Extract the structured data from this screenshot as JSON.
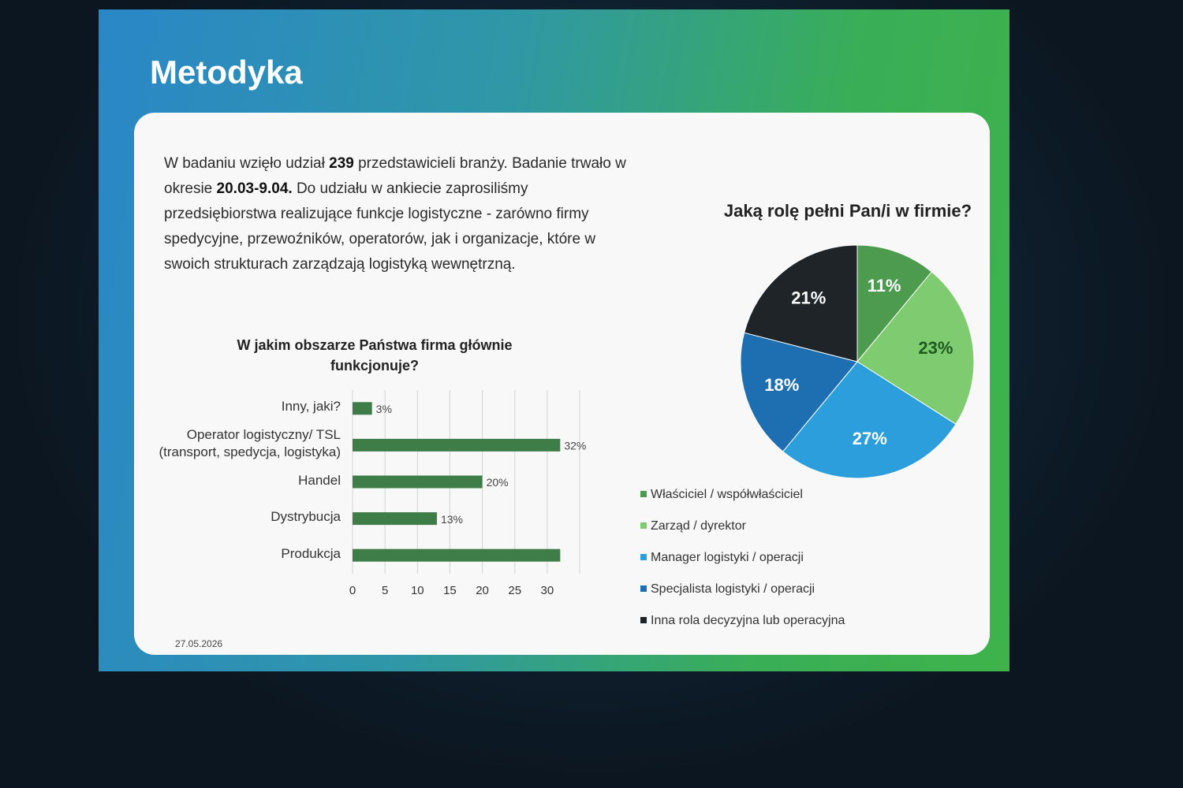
{
  "slide": {
    "title": "Metodyka",
    "paragraph": [
      "W badaniu wzięło udział ",
      "239",
      " przedstawicieli branży. Badanie trwało w okresie ",
      "20.03-9.04.",
      " Do udziału w ankiecie zaprosiliśmy przedsiębiorstwa realizujące funkcje logistyczne - zarówno firmy spedycyjne, przewoźników, operatorów, jak i organizacje, które w swoich strukturach zarządzają logistyką wewnętrzną."
    ],
    "date": "27.05.2026"
  },
  "chart_data": [
    {
      "type": "hbar",
      "title": "W jakim obszarze Państwa firma głównie funkcjonuje?",
      "categories": [
        "Inny, jaki?",
        "Operator logistyczny/ TSL (transport, spedycja, logistyka)",
        "Handel",
        "Dystrybucja",
        "Produkcja"
      ],
      "values": [
        3,
        32,
        20,
        13,
        32
      ],
      "value_labels": [
        "3%",
        "32%",
        "20%",
        "13%",
        null
      ],
      "color": "#3e7d47",
      "xlim": [
        0,
        35
      ],
      "xticks": [
        0,
        5,
        10,
        15,
        20,
        25,
        30
      ],
      "grid": true
    },
    {
      "type": "pie",
      "title": "Jaką rolę pełni Pan/i w firmie?",
      "categories": [
        "Właściciel / współwłaściciel",
        "Zarząd / dyrektor",
        "Manager logistyki / operacji",
        "Specjalista logistyki / operacji",
        "Inna rola decyzyjna lub operacyjna"
      ],
      "values": [
        11,
        23,
        27,
        18,
        21
      ],
      "value_labels": [
        "11%",
        "23%",
        "27%",
        "18%",
        "21%"
      ],
      "colors": [
        "#4c9b4f",
        "#7fcb70",
        "#2b9edb",
        "#1e6fb2",
        "#1f2428"
      ],
      "label_colors": [
        "#ffffff",
        "#1f5a22",
        "#ffffff",
        "#ffffff",
        "#ffffff"
      ],
      "legend": "bottom"
    }
  ]
}
